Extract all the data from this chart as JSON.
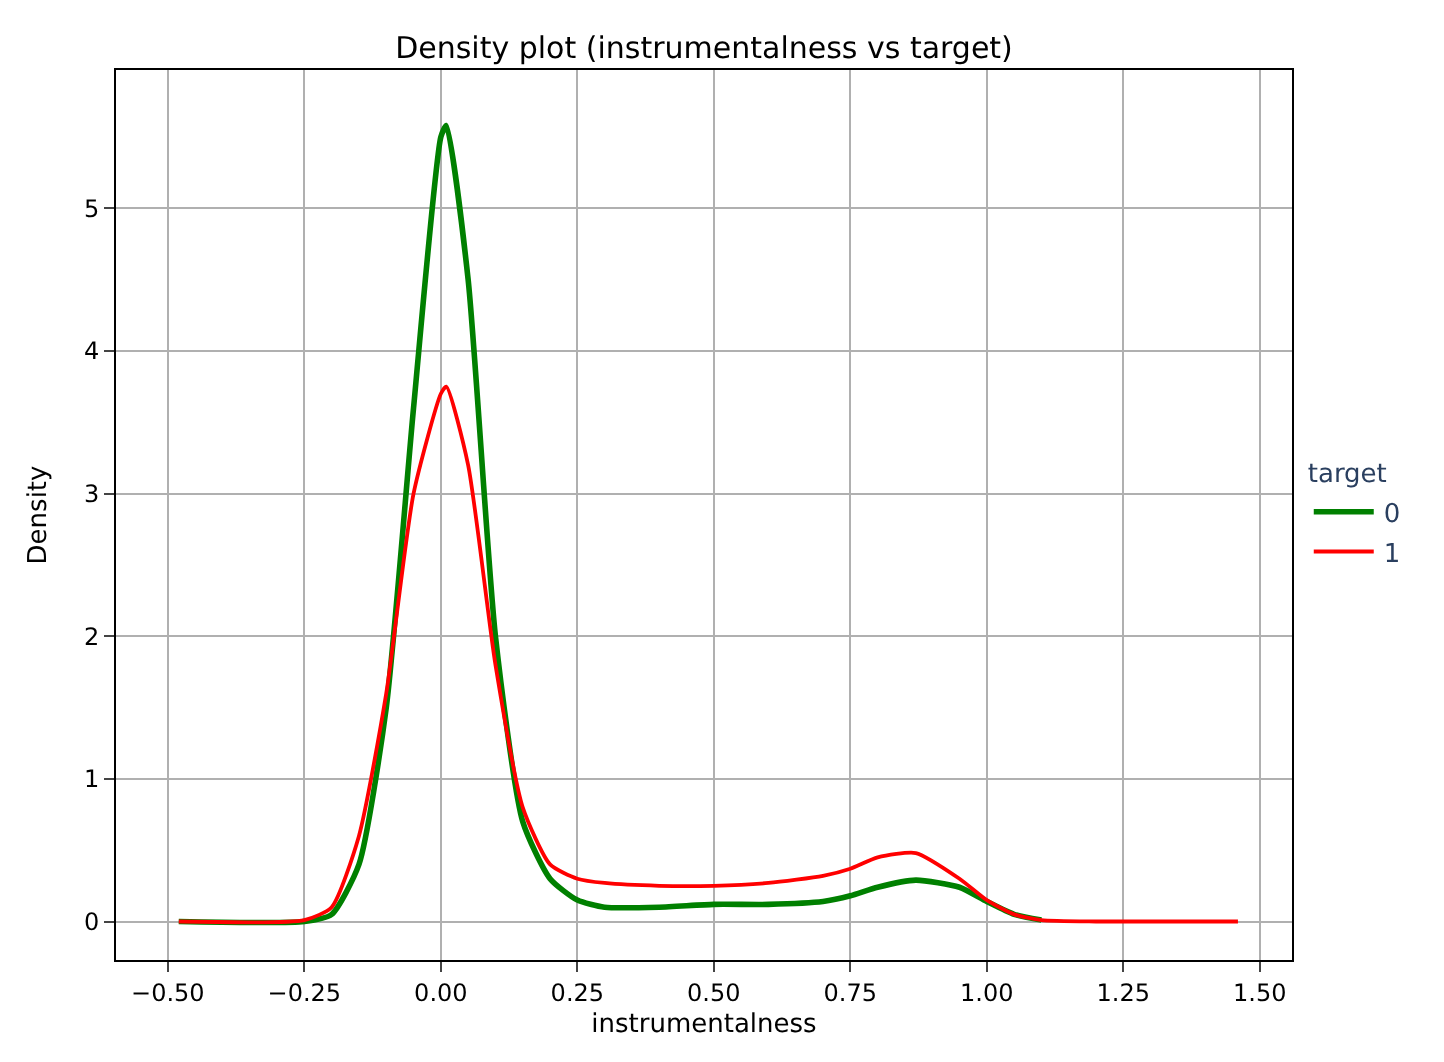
{
  "chart_data": {
    "type": "line",
    "title": "Density plot (instrumentalness vs target)",
    "xlabel": "instrumentalness",
    "ylabel": "Density",
    "legend_title": "target",
    "legend": "right",
    "grid": true,
    "xlim": [
      -0.595,
      1.559
    ],
    "xticks": [
      {
        "value": -0.5,
        "label": "−0.50"
      },
      {
        "value": -0.25,
        "label": "−0.25"
      },
      {
        "value": 0,
        "label": "0.00"
      },
      {
        "value": 0.25,
        "label": "0.25"
      },
      {
        "value": 0.5,
        "label": "0.50"
      },
      {
        "value": 0.75,
        "label": "0.75"
      },
      {
        "value": 1.0,
        "label": "1.00"
      },
      {
        "value": 1.25,
        "label": "1.25"
      },
      {
        "value": 1.5,
        "label": "1.50"
      }
    ],
    "ylim": [
      -0.27,
      5.97
    ],
    "yticks": [
      0,
      1,
      2,
      3,
      4,
      5
    ],
    "x": [
      -0.48,
      -0.25,
      -0.2,
      -0.15,
      -0.1,
      -0.05,
      0,
      0.01,
      0.05,
      0.1,
      0.15,
      0.2,
      0.25,
      0.3,
      0.4,
      0.5,
      0.6,
      0.7,
      0.75,
      0.8,
      0.87,
      0.95,
      1.0,
      1.05,
      1.1,
      1.2,
      1.46
    ],
    "series": [
      {
        "name": "0",
        "color": "#008000",
        "values": [
          0,
          0,
          0.05,
          0.4,
          1.5,
          3.6,
          5.5,
          5.58,
          4.5,
          2.0,
          0.7,
          0.3,
          0.15,
          0.1,
          0.1,
          0.12,
          0.12,
          0.14,
          0.18,
          0.24,
          0.29,
          0.24,
          0.14,
          0.05,
          0.01,
          null,
          null
        ]
      },
      {
        "name": "1",
        "color": "#ff0000",
        "values": [
          0,
          0.01,
          0.1,
          0.6,
          1.6,
          3.0,
          3.7,
          3.75,
          3.2,
          1.8,
          0.8,
          0.4,
          0.3,
          0.27,
          0.25,
          0.25,
          0.27,
          0.32,
          0.37,
          0.45,
          0.48,
          0.3,
          0.15,
          0.05,
          0.01,
          0,
          0
        ]
      }
    ]
  }
}
